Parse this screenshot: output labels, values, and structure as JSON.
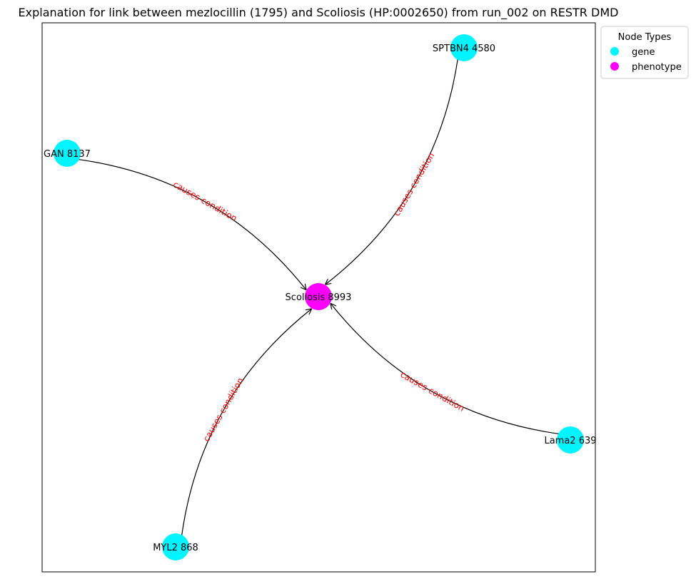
{
  "title": "Explanation for link between mezlocillin (1795) and Scoliosis (HP:0002650) from run_002 on RESTR DMD",
  "legend": {
    "title": "Node Types",
    "items": [
      {
        "label": "gene",
        "color": "#00f5ff"
      },
      {
        "label": "phenotype",
        "color": "#ff00ff"
      }
    ]
  },
  "nodes": [
    {
      "id": "scoliosis",
      "label": "Scoliosis 8993",
      "type": "phenotype"
    },
    {
      "id": "sptbn4",
      "label": "SPTBN4 4580",
      "type": "gene"
    },
    {
      "id": "gan",
      "label": "GAN 8137",
      "type": "gene"
    },
    {
      "id": "lama2",
      "label": "Lama2 639",
      "type": "gene"
    },
    {
      "id": "myl2",
      "label": "MYL2 868",
      "type": "gene"
    }
  ],
  "edges": [
    {
      "source": "gan",
      "target": "scoliosis",
      "label": "causes condition"
    },
    {
      "source": "sptbn4",
      "target": "scoliosis",
      "label": "causes condition"
    },
    {
      "source": "lama2",
      "target": "scoliosis",
      "label": "causes condition"
    },
    {
      "source": "myl2",
      "target": "scoliosis",
      "label": "causes condition"
    }
  ],
  "colors": {
    "gene": "#00f5ff",
    "phenotype": "#ff00ff",
    "edge": "#000000",
    "edge_label": "#ff0000"
  }
}
